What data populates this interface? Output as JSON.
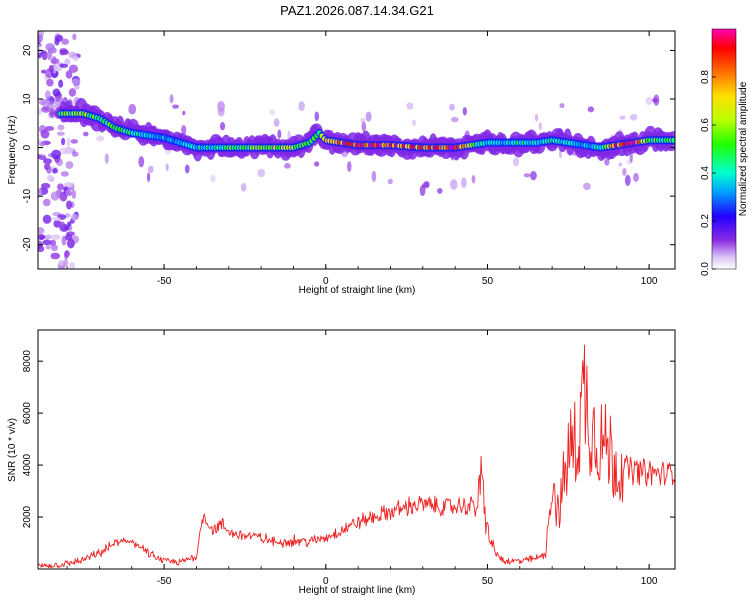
{
  "title": "PAZ1.2026.087.14.34.G21",
  "chart_data": [
    {
      "type": "heatmap",
      "xlabel": "Height of straight line (km)",
      "ylabel": "Frequency (Hz)",
      "xlim": [
        -89,
        108
      ],
      "ylim": [
        -25,
        24
      ],
      "xticks": [
        -50,
        0,
        50,
        100
      ],
      "yticks": [
        -20,
        -10,
        0,
        10,
        20
      ],
      "ridge": {
        "x": [
          -81,
          -75,
          -70,
          -65,
          -60,
          -55,
          -50,
          -45,
          -40,
          -35,
          -30,
          -25,
          -20,
          -15,
          -10,
          -5,
          -2,
          0,
          5,
          10,
          20,
          30,
          40,
          45,
          50,
          55,
          60,
          65,
          70,
          75,
          80,
          85,
          90,
          95,
          100,
          105,
          108
        ],
        "freq": [
          7,
          7,
          6,
          4,
          3,
          2.5,
          2,
          1,
          0,
          0,
          0,
          0,
          0,
          0,
          0,
          1,
          3,
          1.5,
          1,
          0.5,
          0.5,
          0,
          0,
          0.5,
          1,
          1,
          1,
          1,
          1.5,
          1,
          0.5,
          0,
          0.5,
          1,
          1.5,
          1.5,
          1.5
        ],
        "amp": [
          0.55,
          0.6,
          0.5,
          0.55,
          0.45,
          0.4,
          0.35,
          0.35,
          0.4,
          0.45,
          0.55,
          0.5,
          0.6,
          0.65,
          0.6,
          0.5,
          0.5,
          0.7,
          0.9,
          0.95,
          0.9,
          0.85,
          0.95,
          0.6,
          0.4,
          0.35,
          0.45,
          0.4,
          0.45,
          0.4,
          0.35,
          0.4,
          0.9,
          0.95,
          0.55,
          0.5,
          0.5
        ]
      }
    },
    {
      "type": "line",
      "color": "#ee2222",
      "xlabel": "Height of straight line (km)",
      "ylabel": "SNR (10 * v/v)",
      "xlim": [
        -89,
        108
      ],
      "ylim": [
        0,
        9200
      ],
      "xticks": [
        -50,
        0,
        50,
        100
      ],
      "yticks": [
        2000,
        4000,
        6000,
        8000
      ],
      "x": [
        -89,
        -80,
        -75,
        -70,
        -65,
        -60,
        -55,
        -50,
        -45,
        -40,
        -38,
        -35,
        -32,
        -30,
        -25,
        -20,
        -15,
        -10,
        -5,
        0,
        5,
        10,
        15,
        20,
        25,
        30,
        35,
        40,
        45,
        47,
        48,
        50,
        52,
        55,
        60,
        65,
        68,
        70,
        72,
        75,
        78,
        80,
        82,
        85,
        88,
        90,
        95,
        100,
        105,
        108
      ],
      "y": [
        100,
        200,
        350,
        600,
        1000,
        1100,
        600,
        300,
        250,
        500,
        2100,
        1500,
        1700,
        1400,
        1300,
        1200,
        1000,
        1100,
        1050,
        1200,
        1500,
        1800,
        2000,
        2200,
        2400,
        2500,
        2400,
        2400,
        2450,
        2500,
        3500,
        1500,
        700,
        300,
        300,
        400,
        600,
        3500,
        2000,
        4500,
        5000,
        7000,
        5500,
        5000,
        4500,
        4000,
        3800,
        3700,
        3650,
        3700
      ]
    }
  ],
  "colorbar": {
    "label": "Normalized spectral amplitude",
    "ticks": [
      0.0,
      0.2,
      0.4,
      0.6,
      0.8
    ],
    "tick_labels": [
      "0.0",
      "0.2",
      "0.4",
      "0.6",
      "0.8"
    ],
    "range": [
      0,
      1
    ]
  }
}
